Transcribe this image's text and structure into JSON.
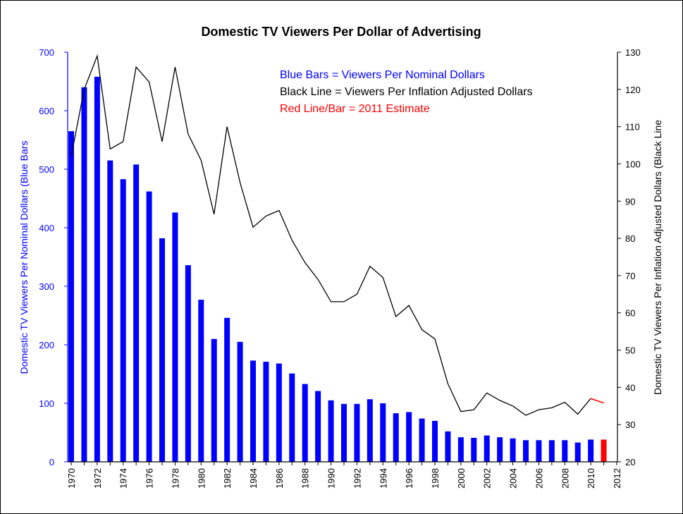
{
  "chart_data": {
    "type": "bar",
    "title": "Domestic TV Viewers Per Dollar of Advertising",
    "ylabel_left": "Domestic TV Viewers Per Nominal Dollars (Blue Bars",
    "ylabel_right": "Domestic TV Viewers Per Inflation Adjusted Dollars (Black Line",
    "ylim_left": [
      0,
      700
    ],
    "yticks_left": [
      "0",
      "100",
      "200",
      "300",
      "400",
      "500",
      "600",
      "700"
    ],
    "ylim_right": [
      20,
      130
    ],
    "yticks_right": [
      "20",
      "30",
      "40",
      "50",
      "60",
      "70",
      "80",
      "90",
      "100",
      "110",
      "120",
      "130"
    ],
    "xlim": [
      1970,
      2012
    ],
    "xticks": [
      "1970",
      "1972",
      "1974",
      "1976",
      "1978",
      "1980",
      "1982",
      "1984",
      "1986",
      "1988",
      "1990",
      "1992",
      "1994",
      "1996",
      "1998",
      "2000",
      "2002",
      "2004",
      "2006",
      "2008",
      "2010",
      "2012"
    ],
    "legend": [
      {
        "text": "Blue Bars = Viewers Per Nominal Dollars",
        "color": "#0000ff"
      },
      {
        "text": "Black Line = Viewers Per Inflation Adjusted Dollars",
        "color": "#000000"
      },
      {
        "text": "Red Line/Bar = 2011 Estimate",
        "color": "#ff0000"
      }
    ],
    "colors": {
      "bars": "#0000ff",
      "line": "#000000",
      "estimate": "#ff0000"
    },
    "series": [
      {
        "kind": "bar",
        "x": [
          1970,
          1971,
          1972,
          1973,
          1974,
          1975,
          1976,
          1977,
          1978,
          1979,
          1980,
          1981,
          1982,
          1983,
          1984,
          1985,
          1986,
          1987,
          1988,
          1989,
          1990,
          1991,
          1992,
          1993,
          1994,
          1995,
          1996,
          1997,
          1998,
          1999,
          2000,
          2001,
          2002,
          2003,
          2004,
          2005,
          2006,
          2007,
          2008,
          2009,
          2010
        ],
        "values": [
          565,
          640,
          658,
          515,
          483,
          508,
          462,
          382,
          426,
          336,
          277,
          210,
          246,
          205,
          173,
          171,
          168,
          151,
          133,
          121,
          105,
          99,
          99,
          107,
          100,
          83,
          85,
          74,
          70,
          52,
          42,
          41,
          45,
          42,
          40,
          37,
          37,
          37,
          37,
          33,
          38
        ]
      },
      {
        "kind": "line",
        "x": [
          1970,
          1971,
          1972,
          1973,
          1974,
          1975,
          1976,
          1977,
          1978,
          1979,
          1980,
          1981,
          1982,
          1983,
          1984,
          1985,
          1986,
          1987,
          1988,
          1989,
          1990,
          1991,
          1992,
          1993,
          1994,
          1995,
          1996,
          1997,
          1998,
          1999,
          2000,
          2001,
          2002,
          2003,
          2004,
          2005,
          2006,
          2007,
          2008,
          2009,
          2010
        ],
        "values": [
          102,
          120,
          129,
          104,
          106,
          126,
          122,
          106,
          126,
          108,
          101,
          86.5,
          110,
          95,
          83,
          86,
          87.5,
          79.5,
          73.5,
          69,
          63,
          63,
          65,
          72.5,
          69.5,
          59,
          62,
          55.5,
          53,
          41,
          33.5,
          34,
          38.5,
          36.5,
          35,
          32.5,
          34,
          34.5,
          36,
          32.8,
          37
        ]
      },
      {
        "kind": "estimate",
        "bar": {
          "x": 2011,
          "value": 38
        },
        "line": {
          "x": [
            2010,
            2011
          ],
          "values": [
            37,
            35.8
          ]
        }
      }
    ]
  }
}
